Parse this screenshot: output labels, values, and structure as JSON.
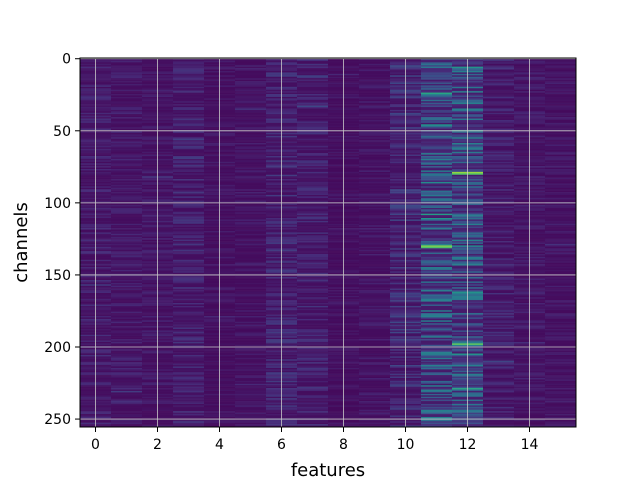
{
  "chart_data": {
    "type": "heatmap",
    "title": "",
    "xlabel": "features",
    "ylabel": "channels",
    "x_count": 16,
    "y_count": 256,
    "xlim": [
      -0.5,
      15.5
    ],
    "ylim": [
      255.5,
      -0.5
    ],
    "x_ticks": [
      0,
      2,
      4,
      6,
      8,
      10,
      12,
      14
    ],
    "y_ticks": [
      0,
      50,
      100,
      150,
      200,
      250
    ],
    "grid": true,
    "colormap": "viridis",
    "colorbar": false,
    "value_range": [
      0,
      1
    ],
    "column_intensity": [
      0.12,
      0.1,
      0.09,
      0.14,
      0.07,
      0.08,
      0.16,
      0.14,
      0.06,
      0.08,
      0.2,
      0.42,
      0.44,
      0.13,
      0.09,
      0.08
    ],
    "hotspots": [
      {
        "feature": 11,
        "channel": 24,
        "value": 0.7
      },
      {
        "feature": 11,
        "channel": 46,
        "value": 0.6
      },
      {
        "feature": 11,
        "channel": 86,
        "value": 0.55
      },
      {
        "feature": 11,
        "channel": 108,
        "value": 0.65
      },
      {
        "feature": 11,
        "channel": 111,
        "value": 0.6
      },
      {
        "feature": 11,
        "channel": 130,
        "value": 0.95
      },
      {
        "feature": 11,
        "channel": 131,
        "value": 0.85
      },
      {
        "feature": 12,
        "channel": 6,
        "value": 0.6
      },
      {
        "feature": 12,
        "channel": 50,
        "value": 0.6
      },
      {
        "feature": 12,
        "channel": 79,
        "value": 1.0
      },
      {
        "feature": 12,
        "channel": 80,
        "value": 0.85
      },
      {
        "feature": 12,
        "channel": 130,
        "value": 0.55
      },
      {
        "feature": 12,
        "channel": 162,
        "value": 0.6
      },
      {
        "feature": 12,
        "channel": 198,
        "value": 0.9
      },
      {
        "feature": 12,
        "channel": 205,
        "value": 0.6
      },
      {
        "feature": 12,
        "channel": 229,
        "value": 0.7
      }
    ]
  },
  "colors": {
    "background": "#ffffff",
    "grid": "#c8c8c8",
    "axis": "#000000"
  }
}
